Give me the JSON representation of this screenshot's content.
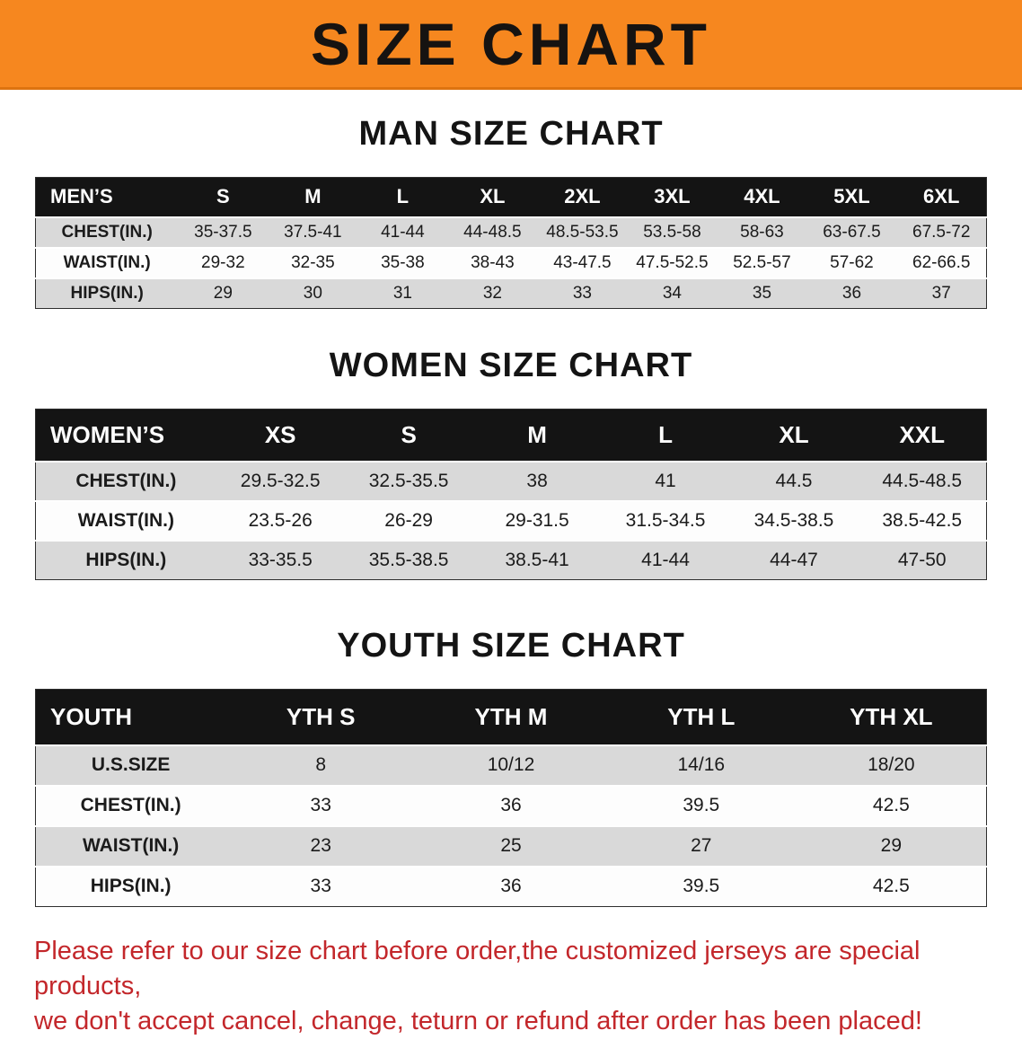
{
  "banner": {
    "title": "SIZE CHART"
  },
  "colors": {
    "banner_bg": "#f6871f",
    "header_bg": "#141414",
    "stripe": "#d9d9d9",
    "disclaimer_red": "#c3272b"
  },
  "sections": {
    "men": {
      "heading": "MAN SIZE CHART"
    },
    "women": {
      "heading": "WOMEN SIZE CHART"
    },
    "youth": {
      "heading": "YOUTH SIZE CHART"
    }
  },
  "chart_data": [
    {
      "type": "table",
      "title": "MAN SIZE CHART",
      "header": [
        "MEN’S",
        "S",
        "M",
        "L",
        "XL",
        "2XL",
        "3XL",
        "4XL",
        "5XL",
        "6XL"
      ],
      "rows": [
        [
          "CHEST(IN.)",
          "35-37.5",
          "37.5-41",
          "41-44",
          "44-48.5",
          "48.5-53.5",
          "53.5-58",
          "58-63",
          "63-67.5",
          "67.5-72"
        ],
        [
          "WAIST(IN.)",
          "29-32",
          "32-35",
          "35-38",
          "38-43",
          "43-47.5",
          "47.5-52.5",
          "52.5-57",
          "57-62",
          "62-66.5"
        ],
        [
          "HIPS(IN.)",
          "29",
          "30",
          "31",
          "32",
          "33",
          "34",
          "35",
          "36",
          "37"
        ]
      ]
    },
    {
      "type": "table",
      "title": "WOMEN SIZE CHART",
      "header": [
        "WOMEN’S",
        "XS",
        "S",
        "M",
        "L",
        "XL",
        "XXL"
      ],
      "rows": [
        [
          "CHEST(IN.)",
          "29.5-32.5",
          "32.5-35.5",
          "38",
          "41",
          "44.5",
          "44.5-48.5"
        ],
        [
          "WAIST(IN.)",
          "23.5-26",
          "26-29",
          "29-31.5",
          "31.5-34.5",
          "34.5-38.5",
          "38.5-42.5"
        ],
        [
          "HIPS(IN.)",
          "33-35.5",
          "35.5-38.5",
          "38.5-41",
          "41-44",
          "44-47",
          "47-50"
        ]
      ]
    },
    {
      "type": "table",
      "title": "YOUTH SIZE CHART",
      "header": [
        "YOUTH",
        "YTH S",
        "YTH M",
        "YTH L",
        "YTH XL"
      ],
      "rows": [
        [
          "U.S.SIZE",
          "8",
          "10/12",
          "14/16",
          "18/20"
        ],
        [
          "CHEST(IN.)",
          "33",
          "36",
          "39.5",
          "42.5"
        ],
        [
          "WAIST(IN.)",
          "23",
          "25",
          "27",
          "29"
        ],
        [
          "HIPS(IN.)",
          "33",
          "36",
          "39.5",
          "42.5"
        ]
      ]
    }
  ],
  "disclaimer": {
    "line1": "Please refer to our size chart before order,the customized jerseys are special products,",
    "line2": "we don't accept cancel, change, teturn or refund after order has been placed!"
  }
}
